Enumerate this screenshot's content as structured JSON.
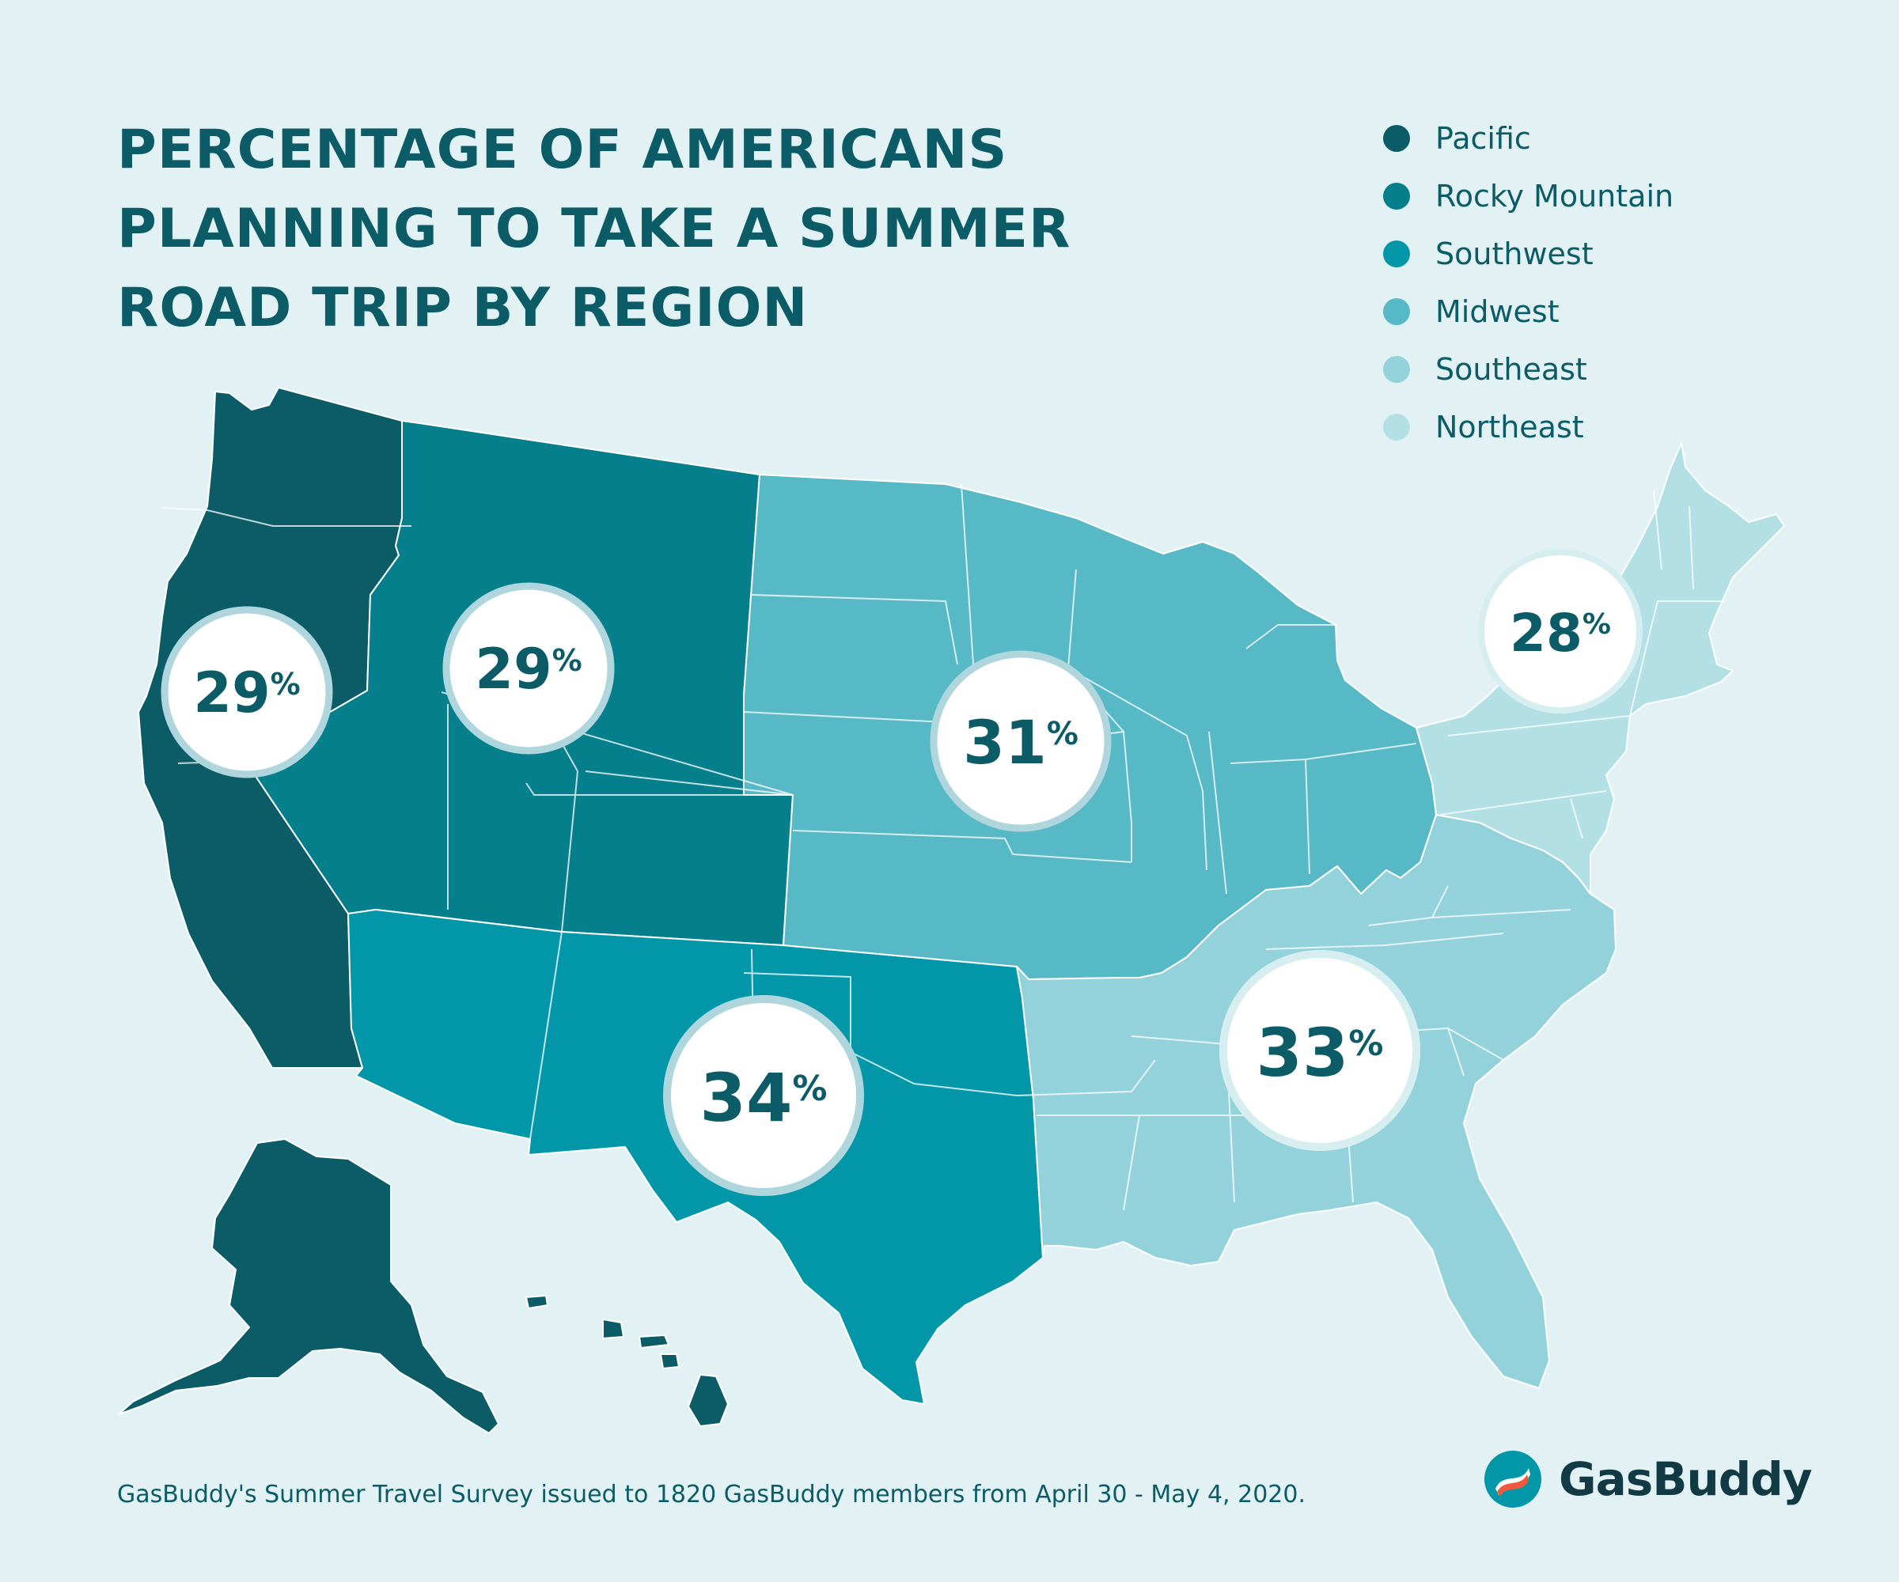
{
  "title": {
    "line1": "PERCENTAGE OF AMERICANS",
    "line2": "PLANNING TO TAKE A SUMMER",
    "line3": "ROAD TRIP BY REGION"
  },
  "legend": [
    {
      "name": "Pacific",
      "color": "#0b5c66"
    },
    {
      "name": "Rocky Mountain",
      "color": "#047f8b"
    },
    {
      "name": "Southwest",
      "color": "#0297a8"
    },
    {
      "name": "Midwest",
      "color": "#57b9c6"
    },
    {
      "name": "Southeast",
      "color": "#93d2db"
    },
    {
      "name": "Northeast",
      "color": "#b3e0e5"
    }
  ],
  "regions": [
    {
      "name": "Pacific",
      "value": 29,
      "number": "29",
      "unit": "%"
    },
    {
      "name": "Rocky Mountain",
      "value": 29,
      "number": "29",
      "unit": "%"
    },
    {
      "name": "Midwest",
      "value": 31,
      "number": "31",
      "unit": "%"
    },
    {
      "name": "Northeast",
      "value": 28,
      "number": "28",
      "unit": "%"
    },
    {
      "name": "Southwest",
      "value": 34,
      "number": "34",
      "unit": "%"
    },
    {
      "name": "Southeast",
      "value": 33,
      "number": "33",
      "unit": "%"
    }
  ],
  "footnote": "GasBuddy's Summer Travel Survey issued to 1820 GasBuddy members from April 30 - May 4, 2020.",
  "brand": {
    "name": "GasBuddy",
    "logo_colors": [
      "#0297a8",
      "#ef5a3c"
    ]
  }
}
